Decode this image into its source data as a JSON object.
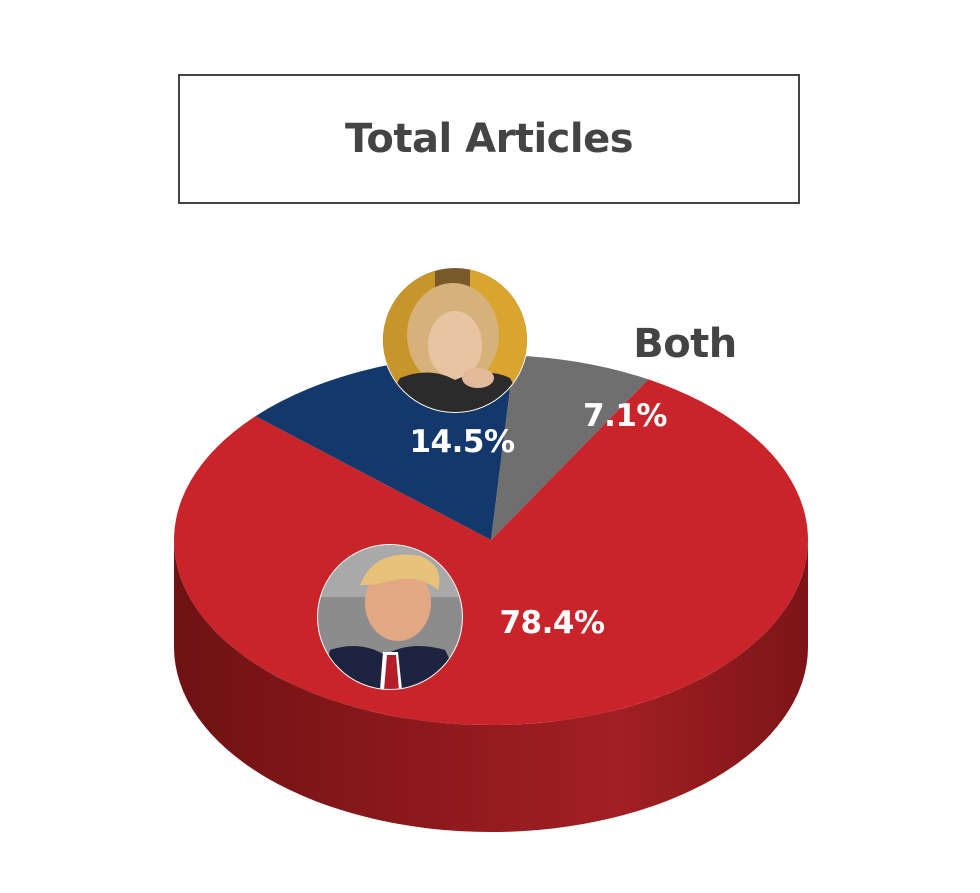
{
  "chart_data": {
    "type": "pie",
    "title": "Total Articles",
    "slices": [
      {
        "name": "Trump",
        "value": 78.4,
        "label": "78.4%",
        "color": "#c8242a",
        "icon": "trump-portrait"
      },
      {
        "name": "Clinton",
        "value": 14.5,
        "label": "14.5%",
        "color": "#14386b",
        "icon": "clinton-portrait"
      },
      {
        "name": "Both",
        "value": 7.1,
        "label": "7.1%",
        "color": "#6f6f6f"
      }
    ],
    "side_color": "#9c1c20",
    "side_color_dark": "#7a1618",
    "legend": "none"
  }
}
